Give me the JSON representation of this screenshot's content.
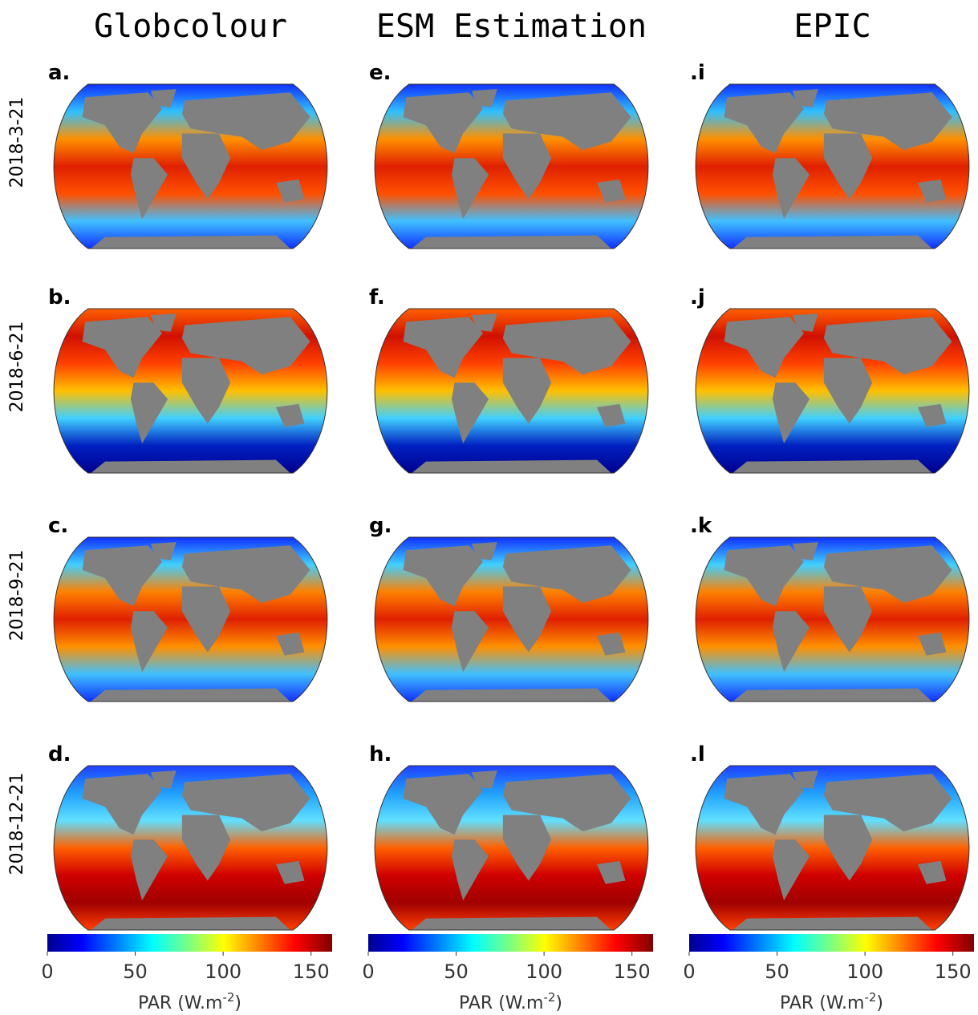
{
  "rows": [
    "2018-3-21",
    "2018-6-21",
    "2018-9-21",
    "2018-12-21"
  ],
  "columns": [
    {
      "title": "Globcolour",
      "panels": [
        "a.",
        "b.",
        "c.",
        "d."
      ],
      "colorbar": {
        "range": [
          0,
          162
        ],
        "ticks": [
          0,
          50,
          100,
          150
        ],
        "label": "PAR (W.m",
        "label_sup": "-2",
        "label_end": ")"
      }
    },
    {
      "title": "ESM Estimation",
      "panels": [
        "e.",
        "f.",
        "g.",
        "h."
      ],
      "colorbar": {
        "range": [
          0,
          162
        ],
        "ticks": [
          0,
          50,
          100,
          150
        ],
        "label": "PAR (W.m",
        "label_sup": "-2",
        "label_end": ")"
      }
    },
    {
      "title": "EPIC",
      "panels": [
        ".i",
        ".j",
        ".k",
        ".l"
      ],
      "colorbar": {
        "range": [
          0,
          162
        ],
        "ticks": [
          0,
          50,
          100,
          150
        ],
        "label": "PAR (W.m",
        "label_sup": "-2",
        "label_end": ")"
      }
    }
  ]
}
